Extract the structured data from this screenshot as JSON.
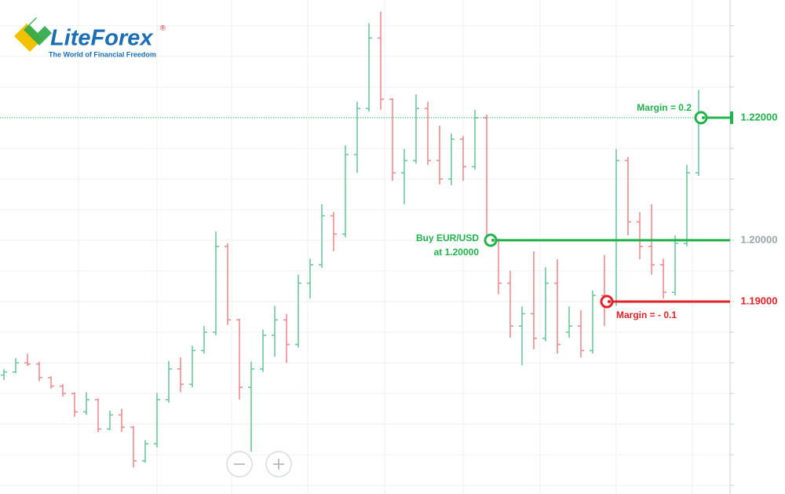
{
  "chart_data": {
    "type": "ohlc",
    "brand": {
      "name": "LiteForex",
      "mark": "®",
      "tagline": "The World of Financial Freedom"
    },
    "up_color": "#6cc89c",
    "down_color": "#f08a90",
    "ylim": [
      1.1586,
      1.2392
    ],
    "ygrid": [
      1.16,
      1.165,
      1.17,
      1.175,
      1.18,
      1.185,
      1.19,
      1.195,
      1.2,
      1.205,
      1.21,
      1.215,
      1.22,
      1.225,
      1.23,
      1.235
    ],
    "grid": true,
    "open": [
      1.178,
      1.1785,
      1.18,
      1.1798,
      1.1776,
      1.1762,
      1.175,
      1.172,
      1.174,
      1.1692,
      1.1715,
      1.1695,
      1.164,
      1.1668,
      1.174,
      1.179,
      1.1765,
      1.182,
      1.185,
      1.199,
      1.187,
      1.176,
      1.179,
      1.1845,
      1.187,
      1.183,
      1.193,
      1.196,
      1.204,
      1.201,
      1.214,
      1.2215,
      1.233,
      1.223,
      1.211,
      1.213,
      1.2215,
      1.213,
      1.21,
      1.2165,
      1.212,
      1.22,
      1.2,
      1.193,
      1.186,
      1.188,
      1.184,
      1.193,
      1.185,
      1.186,
      1.182,
      1.191,
      1.19,
      1.213,
      1.203,
      1.199,
      1.196,
      1.1915,
      1.1995,
      1.211
    ],
    "high": [
      1.179,
      1.1808,
      1.1815,
      1.1802,
      1.1778,
      1.1765,
      1.1752,
      1.1752,
      1.1742,
      1.1722,
      1.1725,
      1.1697,
      1.1674,
      1.1751,
      1.1803,
      1.1809,
      1.1828,
      1.186,
      1.2014,
      1.1995,
      1.1872,
      1.1802,
      1.1854,
      1.1893,
      1.188,
      1.1944,
      1.197,
      1.2059,
      1.2046,
      1.2155,
      1.2226,
      1.2354,
      1.2373,
      1.2232,
      1.2149,
      1.2238,
      1.2226,
      1.2187,
      1.2174,
      1.217,
      1.2213,
      1.2205,
      1.2003,
      1.195,
      1.1892,
      1.1982,
      1.1956,
      1.1969,
      1.1892,
      1.1886,
      1.1918,
      1.1976,
      1.2149,
      1.2136,
      1.2046,
      1.2059,
      1.197,
      1.2008,
      1.2123,
      1.2245
    ],
    "low": [
      1.1772,
      1.1783,
      1.1795,
      1.177,
      1.1758,
      1.1745,
      1.1712,
      1.1715,
      1.1687,
      1.169,
      1.1687,
      1.1629,
      1.1637,
      1.1662,
      1.1735,
      1.1752,
      1.176,
      1.1815,
      1.1845,
      1.1862,
      1.174,
      1.1655,
      1.1785,
      1.181,
      1.18,
      1.1825,
      1.1905,
      1.1955,
      1.1982,
      1.2005,
      1.211,
      1.221,
      1.2213,
      1.2097,
      1.2059,
      1.2125,
      1.2123,
      1.2091,
      1.209,
      1.2097,
      1.2115,
      1.1995,
      1.1912,
      1.1841,
      1.1796,
      1.1822,
      1.1835,
      1.1815,
      1.1841,
      1.1809,
      1.1815,
      1.186,
      1.1893,
      1.2008,
      1.1969,
      1.1944,
      1.1905,
      1.191,
      1.199,
      1.2105
    ],
    "close": [
      1.1785,
      1.18,
      1.1798,
      1.1776,
      1.1762,
      1.175,
      1.172,
      1.174,
      1.1692,
      1.1715,
      1.1695,
      1.164,
      1.1668,
      1.174,
      1.179,
      1.1765,
      1.182,
      1.185,
      1.199,
      1.187,
      1.176,
      1.179,
      1.1845,
      1.187,
      1.183,
      1.193,
      1.196,
      1.204,
      1.201,
      1.214,
      1.2215,
      1.233,
      1.223,
      1.211,
      1.213,
      1.2215,
      1.213,
      1.21,
      1.2165,
      1.212,
      1.22,
      1.2,
      1.193,
      1.186,
      1.188,
      1.184,
      1.193,
      1.183,
      1.186,
      1.182,
      1.191,
      1.19,
      1.213,
      1.203,
      1.199,
      1.196,
      1.1915,
      1.1995,
      1.211,
      1.22
    ],
    "levels": [
      {
        "value": 1.22,
        "label": "1.22000",
        "label_color": "#22b24c",
        "color": "#22b24c",
        "note": [
          "Margin = 0.2"
        ]
      },
      {
        "value": 1.2,
        "label": "1.20000",
        "label_color": "#9aa4ab",
        "color": "#22b24c",
        "note": [
          "Buy EUR/USD",
          "at 1.20000"
        ]
      },
      {
        "value": 1.19,
        "label": "1.19000",
        "label_color": "#e32228",
        "color": "#e32228",
        "note": [
          "Margin = - 0.1"
        ]
      }
    ]
  }
}
